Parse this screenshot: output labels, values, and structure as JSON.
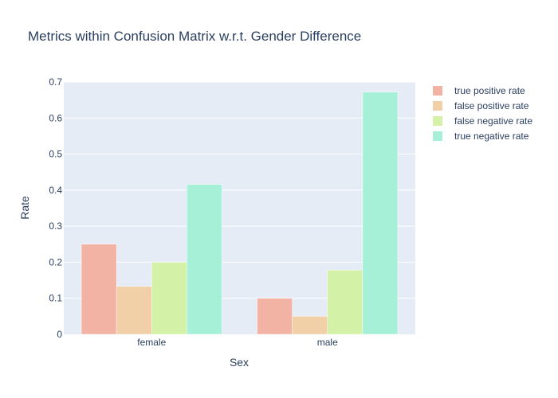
{
  "chart_data": {
    "type": "bar",
    "title": "Metrics within Confusion Matrix w.r.t. Gender Difference",
    "xlabel": "Sex",
    "ylabel": "Rate",
    "categories": [
      "female",
      "male"
    ],
    "ylim": [
      0,
      0.7
    ],
    "yticks": [
      0,
      0.1,
      0.2,
      0.3,
      0.4,
      0.5,
      0.6,
      0.7
    ],
    "ytick_labels": [
      "0",
      "0.1",
      "0.2",
      "0.3",
      "0.4",
      "0.5",
      "0.6",
      "0.7"
    ],
    "grid": true,
    "legend_position": "top-right",
    "series": [
      {
        "name": "true positive rate",
        "values": [
          0.25,
          0.1
        ],
        "color": "#F2B3A4"
      },
      {
        "name": "false positive rate",
        "values": [
          0.133,
          0.05
        ],
        "color": "#F2D0A7"
      },
      {
        "name": "false negative rate",
        "values": [
          0.2,
          0.178
        ],
        "color": "#D4F2A7"
      },
      {
        "name": "true negative rate",
        "values": [
          0.416,
          0.672
        ],
        "color": "#A7F0D8"
      }
    ]
  },
  "colors": {
    "plot_background": "#E5ECF6",
    "gridline": "#ffffff",
    "text": "#2a3f5f"
  }
}
